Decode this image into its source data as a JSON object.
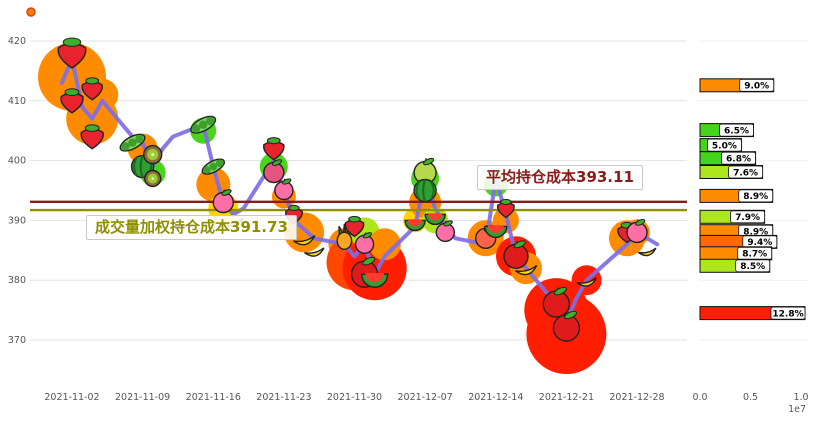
{
  "accent_colors": {
    "line": "#7d6ee8",
    "avg_cost": "#8b1a1a",
    "vwap_cost": "#8f8f00",
    "bubble_orange": "#ff8c00",
    "bubble_red": "#ff1e00",
    "bubble_green": "#4cd41c",
    "bubble_yellow": "#ffd400"
  },
  "chart_data": [
    {
      "type": "line",
      "title": "",
      "xlabel": "",
      "ylabel": "",
      "ylim": [
        365,
        424
      ],
      "grid": true,
      "yticks": [
        370,
        380,
        390,
        400,
        410,
        420
      ],
      "xtick_labels": [
        "2021-11-02",
        "2021-11-09",
        "2021-11-16",
        "2021-11-23",
        "2021-11-30",
        "2021-12-07",
        "2021-12-14",
        "2021-12-21",
        "2021-12-28"
      ],
      "line_color": "#7d6ee8",
      "avg_line": {
        "label": "平均持仓成本393.11",
        "value": 393.11,
        "color": "#8b1a1a"
      },
      "vwap_line": {
        "label": "成交量加权持仓成本391.73",
        "value": 391.73,
        "color": "#8f8f00"
      },
      "dates": [
        "11-01",
        "11-02",
        "11-03",
        "11-04",
        "11-05",
        "11-08",
        "11-09",
        "11-10",
        "11-11",
        "11-12",
        "11-15",
        "11-16",
        "11-17",
        "11-18",
        "11-19",
        "11-22",
        "11-23",
        "11-24",
        "11-26",
        "11-29",
        "11-30",
        "12-01",
        "12-02",
        "12-03",
        "12-06",
        "12-07",
        "12-08",
        "12-09",
        "12-10",
        "12-13",
        "12-14",
        "12-15",
        "12-16",
        "12-17",
        "12-20",
        "12-21",
        "12-22",
        "12-23",
        "12-27",
        "12-28",
        "12-29",
        "12-30"
      ],
      "values": [
        413,
        417,
        409,
        407,
        410,
        404,
        403,
        399,
        402,
        404,
        406,
        399,
        393,
        391,
        392,
        400,
        395,
        390,
        387,
        386,
        384,
        386,
        381,
        384,
        389,
        397,
        392,
        389,
        387,
        386,
        397,
        391,
        384,
        382,
        376,
        373,
        377,
        380,
        386,
        388,
        387,
        386
      ],
      "bubbles": [
        {
          "d": "11-02",
          "p": 414,
          "r": 34,
          "c": "#ff8c00"
        },
        {
          "d": "11-04",
          "p": 407,
          "r": 26,
          "c": "#ff8c00"
        },
        {
          "d": "11-05",
          "p": 411,
          "r": 16,
          "c": "#ff8c00"
        },
        {
          "d": "11-09",
          "p": 402,
          "r": 15,
          "c": "#ff8c00"
        },
        {
          "d": "11-10",
          "p": 398,
          "r": 13,
          "c": "#4cd41c"
        },
        {
          "d": "11-15",
          "p": 405,
          "r": 13,
          "c": "#4cd41c"
        },
        {
          "d": "11-16",
          "p": 396,
          "r": 17,
          "c": "#ff8c00"
        },
        {
          "d": "11-17",
          "p": 392,
          "r": 15,
          "c": "#ffd400"
        },
        {
          "d": "11-22",
          "p": 399,
          "r": 14,
          "c": "#4cd41c"
        },
        {
          "d": "11-23",
          "p": 394,
          "r": 12,
          "c": "#ff8c00"
        },
        {
          "d": "11-25",
          "p": 388,
          "r": 20,
          "c": "#ff8c00"
        },
        {
          "d": "11-29",
          "p": 386,
          "r": 16,
          "c": "#ff8c00"
        },
        {
          "d": "11-30",
          "p": 383,
          "r": 28,
          "c": "#ff4800"
        },
        {
          "d": "12-01",
          "p": 388,
          "r": 15,
          "c": "#aee61e"
        },
        {
          "d": "12-02",
          "p": 382,
          "r": 32,
          "c": "#ff1e00"
        },
        {
          "d": "12-03",
          "p": 386,
          "r": 16,
          "c": "#ff8c00"
        },
        {
          "d": "12-06",
          "p": 390,
          "r": 12,
          "c": "#ffd400"
        },
        {
          "d": "12-07",
          "p": 397,
          "r": 14,
          "c": "#4cd41c"
        },
        {
          "d": "12-07",
          "p": 393,
          "r": 16,
          "c": "#ff8c00"
        },
        {
          "d": "12-08",
          "p": 390,
          "r": 13,
          "c": "#aee61e"
        },
        {
          "d": "12-13",
          "p": 387,
          "r": 18,
          "c": "#ff8c00"
        },
        {
          "d": "12-14",
          "p": 396,
          "r": 12,
          "c": "#4cd41c"
        },
        {
          "d": "12-15",
          "p": 390,
          "r": 13,
          "c": "#ff8c00"
        },
        {
          "d": "12-16",
          "p": 384,
          "r": 20,
          "c": "#ff1e00"
        },
        {
          "d": "12-17",
          "p": 382,
          "r": 16,
          "c": "#ff8c00"
        },
        {
          "d": "12-20",
          "p": 375,
          "r": 32,
          "c": "#ff1e00"
        },
        {
          "d": "12-21",
          "p": 371,
          "r": 40,
          "c": "#ff1e00"
        },
        {
          "d": "12-23",
          "p": 380,
          "r": 15,
          "c": "#ff1e00"
        },
        {
          "d": "12-27",
          "p": 387,
          "r": 18,
          "c": "#ff8c00"
        },
        {
          "d": "12-28",
          "p": 388,
          "r": 13,
          "c": "#ff8c00"
        }
      ],
      "fruits": [
        {
          "d": "11-02",
          "p": 418,
          "t": "strawberry",
          "s": 15
        },
        {
          "d": "11-02",
          "p": 410,
          "t": "strawberry",
          "s": 12
        },
        {
          "d": "11-04",
          "p": 412,
          "t": "strawberry",
          "s": 11
        },
        {
          "d": "11-04",
          "p": 404,
          "t": "strawberry",
          "s": 12
        },
        {
          "d": "11-08",
          "p": 403,
          "t": "peas",
          "s": 10
        },
        {
          "d": "11-09",
          "p": 399,
          "t": "watermelon",
          "s": 11
        },
        {
          "d": "11-10",
          "p": 401,
          "t": "kiwi",
          "s": 9
        },
        {
          "d": "11-10",
          "p": 397,
          "t": "kiwi",
          "s": 8
        },
        {
          "d": "11-15",
          "p": 406,
          "t": "peas",
          "s": 10
        },
        {
          "d": "11-16",
          "p": 399,
          "t": "peas",
          "s": 9
        },
        {
          "d": "11-17",
          "p": 393,
          "t": "radish",
          "s": 10
        },
        {
          "d": "11-18",
          "p": 390,
          "t": "banana",
          "s": 10
        },
        {
          "d": "11-22",
          "p": 402,
          "t": "strawberry",
          "s": 11
        },
        {
          "d": "11-22",
          "p": 398,
          "t": "pomegranate",
          "s": 10
        },
        {
          "d": "11-23",
          "p": 395,
          "t": "radish",
          "s": 9
        },
        {
          "d": "11-24",
          "p": 391,
          "t": "strawberry",
          "s": 9
        },
        {
          "d": "11-25",
          "p": 387,
          "t": "banana",
          "s": 11
        },
        {
          "d": "11-26",
          "p": 385,
          "t": "banana",
          "s": 10
        },
        {
          "d": "11-29",
          "p": 387,
          "t": "pineapple",
          "s": 10
        },
        {
          "d": "11-30",
          "p": 389,
          "t": "strawberry",
          "s": 10
        },
        {
          "d": "12-01",
          "p": 386,
          "t": "radish",
          "s": 9
        },
        {
          "d": "12-01",
          "p": 381,
          "t": "apple",
          "s": 13
        },
        {
          "d": "12-02",
          "p": 381,
          "t": "watermelon-slice",
          "s": 13
        },
        {
          "d": "12-06",
          "p": 390,
          "t": "watermelon-slice",
          "s": 10
        },
        {
          "d": "12-07",
          "p": 398,
          "t": "pear",
          "s": 11
        },
        {
          "d": "12-07",
          "p": 395,
          "t": "watermelon",
          "s": 11
        },
        {
          "d": "12-08",
          "p": 391,
          "t": "watermelon-slice",
          "s": 10
        },
        {
          "d": "12-09",
          "p": 388,
          "t": "radish",
          "s": 9
        },
        {
          "d": "12-13",
          "p": 387,
          "t": "tomato",
          "s": 10
        },
        {
          "d": "12-14",
          "p": 389,
          "t": "watermelon-slice",
          "s": 11
        },
        {
          "d": "12-15",
          "p": 392,
          "t": "strawberry",
          "s": 9
        },
        {
          "d": "12-16",
          "p": 384,
          "t": "apple",
          "s": 12
        },
        {
          "d": "12-17",
          "p": 382,
          "t": "banana",
          "s": 11
        },
        {
          "d": "12-20",
          "p": 376,
          "t": "apple",
          "s": 13
        },
        {
          "d": "12-21",
          "p": 372,
          "t": "apple",
          "s": 13
        },
        {
          "d": "12-23",
          "p": 380,
          "t": "banana",
          "s": 10
        },
        {
          "d": "12-27",
          "p": 388,
          "t": "strawberry",
          "s": 10
        },
        {
          "d": "12-28",
          "p": 388,
          "t": "radish",
          "s": 10
        },
        {
          "d": "12-29",
          "p": 385,
          "t": "banana",
          "s": 9
        }
      ],
      "fruit_styles": {
        "strawberry": {
          "shape": "berry",
          "body": "#e8232e",
          "leaf": "#3daf2c"
        },
        "apple": {
          "shape": "circle",
          "body": "#e01b1b",
          "leaf": "#3daf2c"
        },
        "tomato": {
          "shape": "circle",
          "body": "#ff6347",
          "leaf": "#3daf2c"
        },
        "pear": {
          "shape": "circle",
          "body": "#b6d94c",
          "leaf": "#3daf2c"
        },
        "radish": {
          "shape": "circle",
          "body": "#ff6fa5",
          "leaf": "#3daf2c"
        },
        "pomegranate": {
          "shape": "circle",
          "body": "#e75480",
          "leaf": "#3daf2c"
        },
        "watermelon": {
          "shape": "melon",
          "body": "#2f9e33",
          "leaf": "#1c6b22"
        },
        "watermelon-slice": {
          "shape": "slice",
          "body": "#ff3b30",
          "leaf": "#2f9e33"
        },
        "kiwi": {
          "shape": "kiwi",
          "body": "#8a6d3b",
          "leaf": "#9acd32"
        },
        "peas": {
          "shape": "peas",
          "body": "#7ed957",
          "leaf": "#3f9e2f"
        },
        "pineapple": {
          "shape": "pineapple",
          "body": "#f5a623",
          "leaf": "#2e8b2e"
        },
        "banana": {
          "shape": "banana",
          "body": "#ffd21f",
          "leaf": "#a67c00"
        }
      }
    },
    {
      "type": "bar",
      "orientation": "horizontal",
      "title": "",
      "xlim": [
        0,
        1.0
      ],
      "xticks": [
        "0.0",
        "0.5",
        "1.0"
      ],
      "x_unit": "1e7",
      "bars": [
        {
          "price": 412.6,
          "value_e7": 0.73,
          "pct": "9.0%",
          "color": "#ff8c00"
        },
        {
          "price": 405.1,
          "value_e7": 0.53,
          "pct": "6.5%",
          "color": "#45d41c"
        },
        {
          "price": 402.6,
          "value_e7": 0.41,
          "pct": "5.0%",
          "color": "#45d41c"
        },
        {
          "price": 400.4,
          "value_e7": 0.55,
          "pct": "6.8%",
          "color": "#45d41c"
        },
        {
          "price": 398.1,
          "value_e7": 0.62,
          "pct": "7.6%",
          "color": "#aee61e"
        },
        {
          "price": 394.1,
          "value_e7": 0.72,
          "pct": "8.9%",
          "color": "#ff8c00"
        },
        {
          "price": 390.6,
          "value_e7": 0.64,
          "pct": "7.9%",
          "color": "#aee61e"
        },
        {
          "price": 388.2,
          "value_e7": 0.72,
          "pct": "8.9%",
          "color": "#ff8c00"
        },
        {
          "price": 386.4,
          "value_e7": 0.76,
          "pct": "9.4%",
          "color": "#ff6a00"
        },
        {
          "price": 384.5,
          "value_e7": 0.71,
          "pct": "8.7%",
          "color": "#ff8c00"
        },
        {
          "price": 382.4,
          "value_e7": 0.69,
          "pct": "8.5%",
          "color": "#aee61e"
        },
        {
          "price": 374.5,
          "value_e7": 1.04,
          "pct": "12.8%",
          "color": "#ff1e00"
        }
      ]
    }
  ]
}
